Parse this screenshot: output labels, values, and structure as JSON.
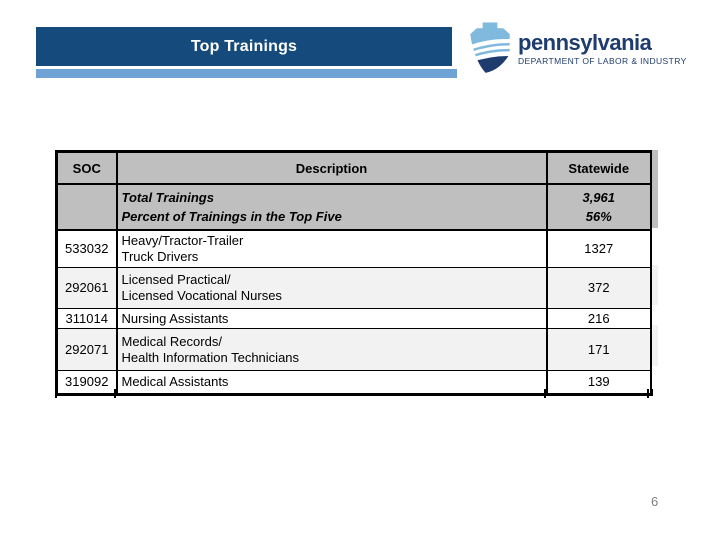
{
  "slide": {
    "title": "Top Trainings",
    "page_number": "6",
    "colors": {
      "title_bar_bg": "#154A7D",
      "accent_bar": "#6FA3D6",
      "table_header_bg": "#BFBFBF",
      "row_alt_bg": "#F2F2F2",
      "logo_dark_blue": "#1E3C6E",
      "logo_light_blue": "#7FB9DE",
      "page_number_gray": "#7F7F7F"
    }
  },
  "logo": {
    "icon": "pa-keystone-icon",
    "name": "pennsylvania",
    "subtitle": "DEPARTMENT OF LABOR & INDUSTRY"
  },
  "table": {
    "columns": [
      "SOC",
      "Description",
      "Statewide"
    ],
    "summary_rows": [
      {
        "description": "Total Trainings",
        "statewide": "3,961"
      },
      {
        "description": "Percent of Trainings in the Top Five",
        "statewide": "56%"
      }
    ],
    "rows": [
      {
        "soc": "533032",
        "description": [
          "Heavy/Tractor-Trailer",
          "Truck Drivers"
        ],
        "statewide": "1327"
      },
      {
        "soc": "292061",
        "description": [
          "Licensed Practical/",
          "Licensed Vocational Nurses"
        ],
        "statewide": "372"
      },
      {
        "soc": "311014",
        "description": [
          "Nursing Assistants"
        ],
        "statewide": "216"
      },
      {
        "soc": "292071",
        "description": [
          "Medical Records/",
          "Health Information Technicians"
        ],
        "statewide": "171"
      },
      {
        "soc": "319092",
        "description": [
          "Medical Assistants"
        ],
        "statewide": "139"
      }
    ]
  }
}
